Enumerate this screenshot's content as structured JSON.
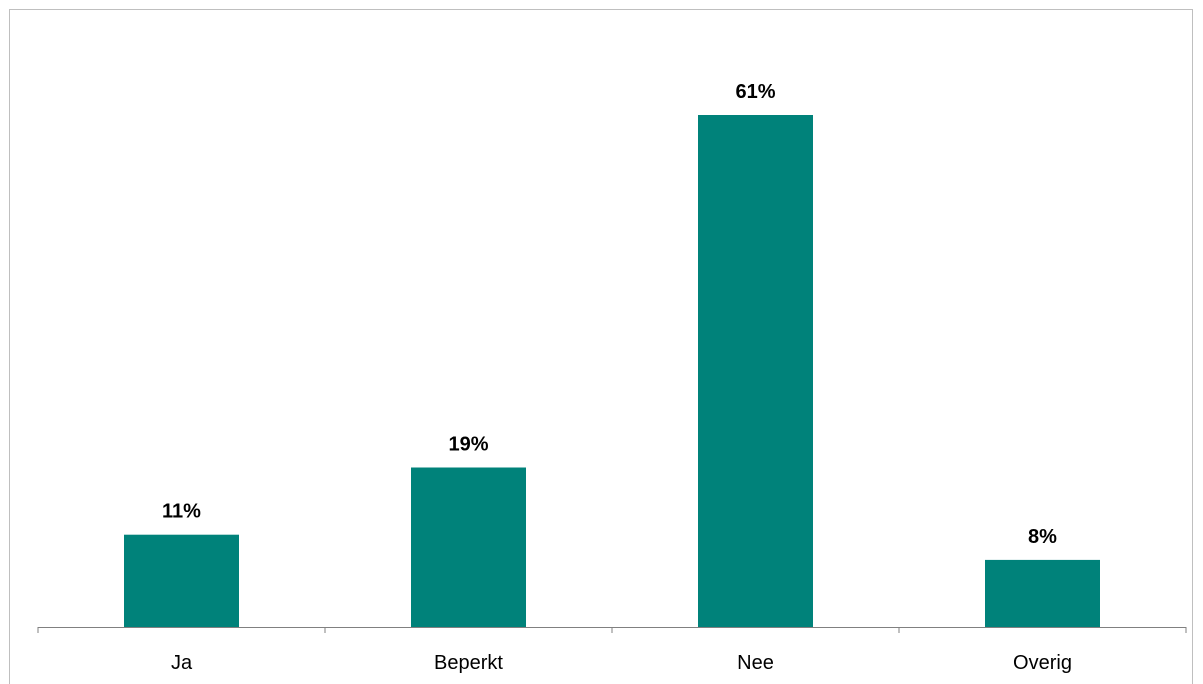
{
  "chart_data": {
    "type": "bar",
    "categories": [
      "Ja",
      "Beperkt",
      "Nee",
      "Overig"
    ],
    "values": [
      11,
      19,
      61,
      8
    ],
    "data_labels": [
      "11%",
      "19%",
      "61%",
      "8%"
    ],
    "unit": "%",
    "ylim": [
      0,
      70
    ],
    "grid": false,
    "legend": "none",
    "bar_color": "#00827A",
    "axis_color": "#808080"
  }
}
